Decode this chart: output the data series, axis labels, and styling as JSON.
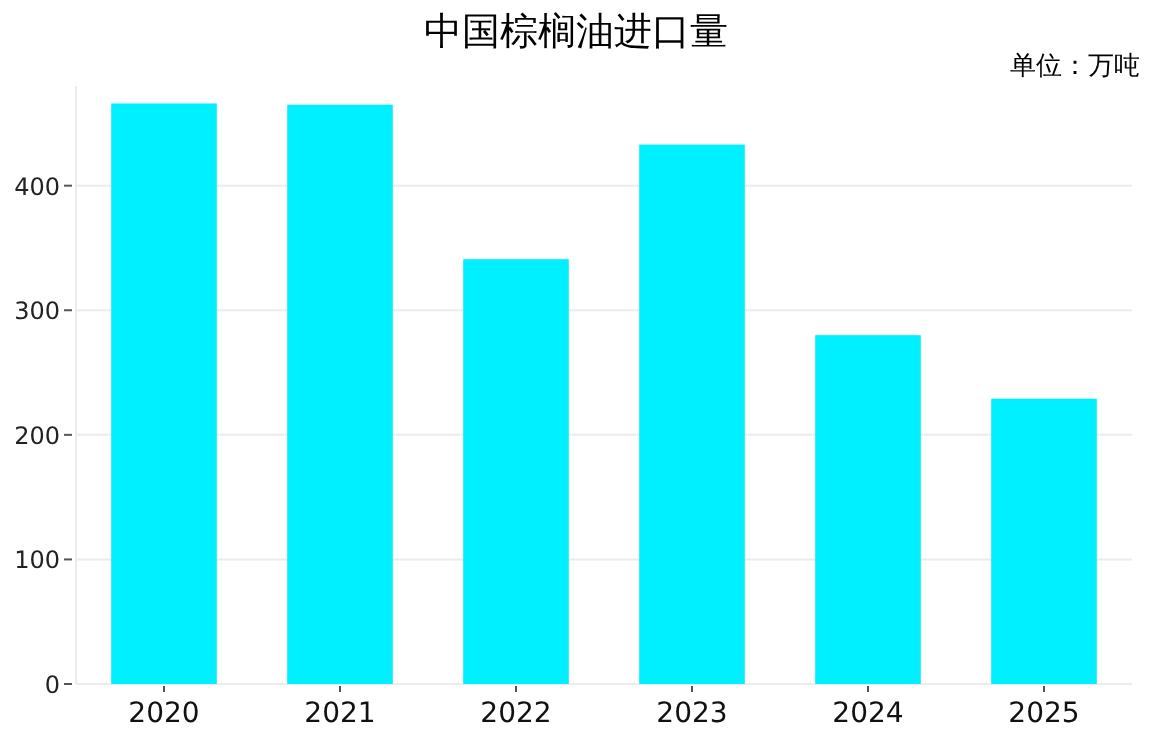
{
  "chart_data": {
    "type": "bar",
    "title": "中国棕榈油进口量",
    "annotations": [
      "单位：万吨"
    ],
    "categories": [
      "2020",
      "2021",
      "2022",
      "2023",
      "2024",
      "2025"
    ],
    "values": [
      466,
      465,
      341,
      433,
      280,
      229
    ],
    "color": "#00f0ff",
    "ylim": [
      0,
      480
    ],
    "yticks": [
      0,
      100,
      200,
      300,
      400
    ],
    "grid": "y"
  }
}
